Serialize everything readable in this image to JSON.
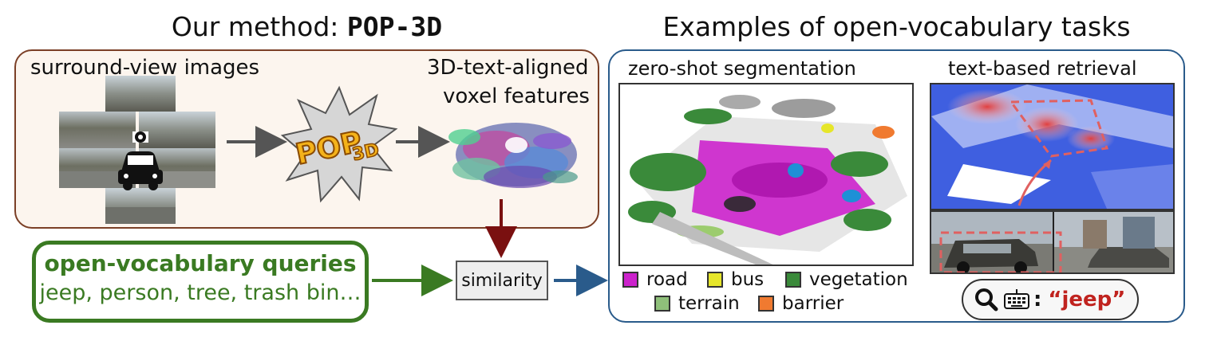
{
  "left_title": {
    "prefix": "Our method: ",
    "name": "POP-3D"
  },
  "right_title": "Examples of open-vocabulary tasks",
  "pipeline": {
    "input_label": "surround-view images",
    "logo_text": "POP",
    "logo_sub": "3D",
    "output_label_line1": "3D-text-aligned",
    "output_label_line2": "voxel features"
  },
  "queries": {
    "heading": "open-vocabulary queries",
    "examples": "jeep, person, tree, trash bin…"
  },
  "similarity_label": "similarity",
  "segmentation": {
    "title": "zero-shot segmentation",
    "legend": [
      {
        "label": "road",
        "color": "#cc22cc"
      },
      {
        "label": "bus",
        "color": "#e6e62a"
      },
      {
        "label": "vegetation",
        "color": "#3a8a3a"
      },
      {
        "label": "terrain",
        "color": "#8fc07a"
      },
      {
        "label": "barrier",
        "color": "#f07a30"
      }
    ]
  },
  "retrieval": {
    "title": "text-based retrieval",
    "query_text": "“jeep”",
    "query_color": "#c0231f",
    "icons": [
      "search-icon",
      "keyboard-icon"
    ]
  },
  "colors": {
    "left_panel_border": "#7b3f26",
    "right_panel_border": "#2a5b8b",
    "query_green": "#3a7a22",
    "arrow_dark_red": "#7a1010",
    "arrow_blue": "#2a5b8b"
  }
}
